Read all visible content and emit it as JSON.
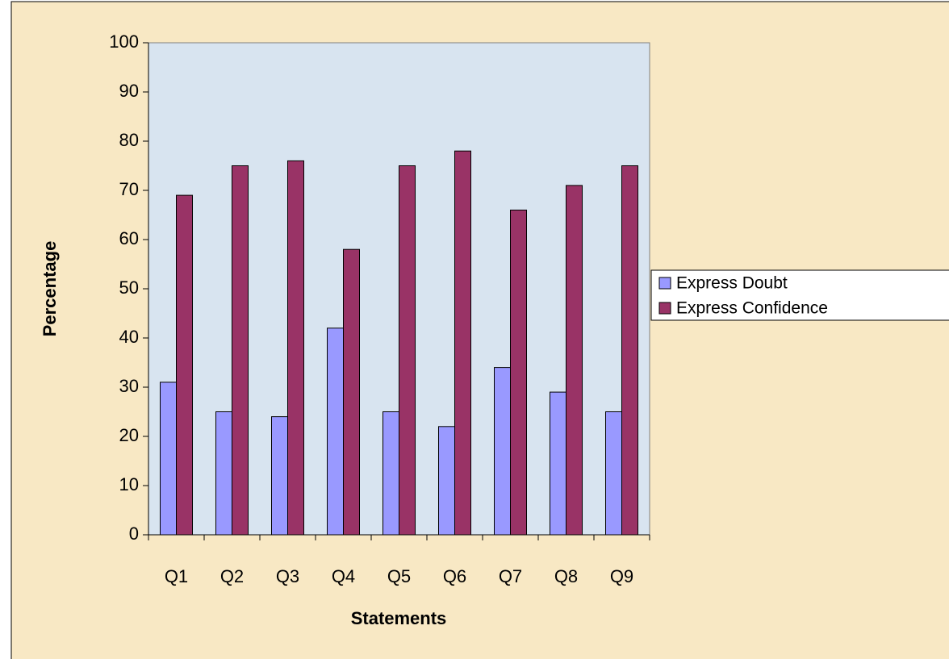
{
  "chart_data": {
    "type": "bar",
    "x_label": "Statements",
    "y_label": "Percentage",
    "categories": [
      "Q1",
      "Q2",
      "Q3",
      "Q4",
      "Q5",
      "Q6",
      "Q7",
      "Q8",
      "Q9"
    ],
    "series": [
      {
        "name": "Express Doubt",
        "color": "#9999ff",
        "values": [
          31,
          25,
          24,
          42,
          25,
          22,
          34,
          29,
          25
        ]
      },
      {
        "name": "Express Confidence",
        "color": "#993366",
        "values": [
          69,
          75,
          76,
          58,
          75,
          78,
          66,
          71,
          75
        ]
      }
    ],
    "ylim": [
      0,
      100
    ],
    "yticks": [
      0,
      10,
      20,
      30,
      40,
      50,
      60,
      70,
      80,
      90,
      100
    ],
    "grid": false,
    "legend": "right"
  }
}
